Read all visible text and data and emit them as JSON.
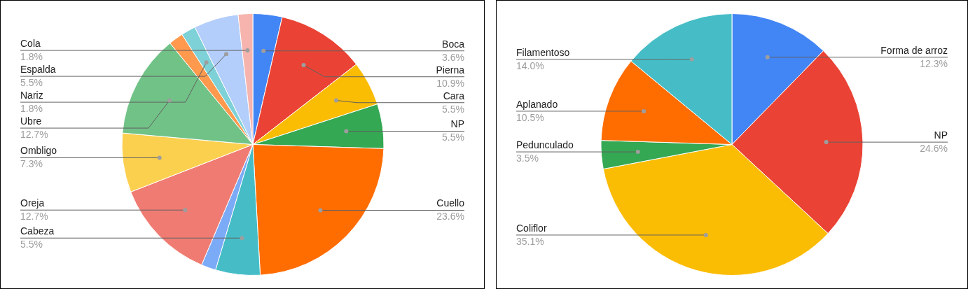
{
  "chart_data": [
    {
      "type": "pie",
      "categories": [
        "Boca",
        "Pierna",
        "Cara",
        "NP",
        "Cuello",
        "Cabeza",
        null,
        "Oreja",
        "Ombligo",
        "Ubre",
        null,
        "Nariz",
        "Espalda",
        "Cola"
      ],
      "values": [
        3.6,
        10.9,
        5.5,
        5.5,
        23.6,
        5.5,
        1.8,
        12.7,
        7.3,
        12.7,
        1.8,
        1.8,
        5.5,
        1.8
      ],
      "colors": [
        "#4285f4",
        "#ea4335",
        "#fbbc04",
        "#34a853",
        "#ff6d01",
        "#46bdc6",
        "#7baaf7",
        "#f07b72",
        "#fcd04f",
        "#71c287",
        "#ff994d",
        "#7ed1d7",
        "#b3cefb",
        "#f7b4ae"
      ],
      "value_labels": [
        "3.6%",
        "10.9%",
        "5.5%",
        "5.5%",
        "23.6%",
        "5.5%",
        null,
        "12.7%",
        "7.3%",
        "12.7%",
        null,
        "1.8%",
        "5.5%",
        "1.8%"
      ]
    },
    {
      "type": "pie",
      "categories": [
        "Forma de arroz",
        "NP",
        "Coliflor",
        "Pedunculado",
        "Aplanado",
        "Filamentoso"
      ],
      "values": [
        12.3,
        24.6,
        35.1,
        3.5,
        10.5,
        14.0
      ],
      "colors": [
        "#4285f4",
        "#ea4335",
        "#fbbc04",
        "#34a853",
        "#ff6d01",
        "#46bdc6"
      ],
      "value_labels": [
        "12.3%",
        "24.6%",
        "35.1%",
        "3.5%",
        "10.5%",
        "14.0%"
      ]
    }
  ]
}
